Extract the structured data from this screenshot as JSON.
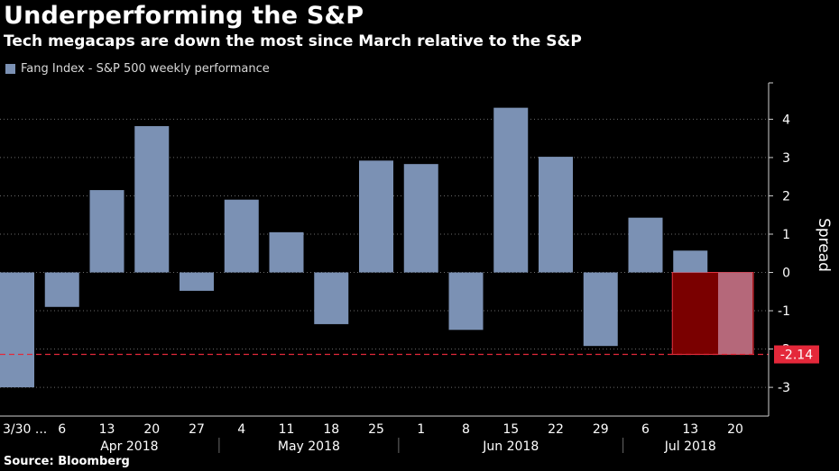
{
  "title": "Underperforming the S&P",
  "subtitle": "Tech megacaps are down the most since March relative to the S&P",
  "source": "Source: Bloomberg",
  "chart_data": {
    "type": "bar",
    "categories": [
      "3/30 ...",
      "6",
      "13",
      "20",
      "27",
      "4",
      "11",
      "18",
      "25",
      "1",
      "8",
      "15",
      "22",
      "29",
      "6",
      "13",
      "20"
    ],
    "month_labels": [
      {
        "label": "Apr 2018",
        "start": 1,
        "end": 4
      },
      {
        "label": "May 2018",
        "start": 5,
        "end": 8
      },
      {
        "label": "Jun 2018",
        "start": 9,
        "end": 13
      },
      {
        "label": "Jul 2018",
        "start": 14,
        "end": 16
      }
    ],
    "series": [
      {
        "name": "Fang Index - S&P 500 weekly performance",
        "values": [
          -3.0,
          -0.9,
          2.15,
          3.82,
          -0.48,
          1.9,
          1.05,
          -1.35,
          2.92,
          2.83,
          -1.5,
          4.3,
          3.02,
          -1.92,
          1.43,
          0.57,
          -2.14
        ]
      }
    ],
    "highlight_index": 16,
    "shaded_regions": [
      {
        "start": 15,
        "end": 16
      }
    ],
    "reference_line": {
      "value": -2.14,
      "label": "-2.14"
    },
    "ylabel": "Spread",
    "ylim": [
      -3.75,
      4.95
    ],
    "yticks": [
      -3,
      -2,
      -1,
      0,
      1,
      2,
      3,
      4
    ],
    "grid": true,
    "legend_position": "top-left",
    "colors": {
      "bar": "#7b91b4",
      "highlight_bar": "#b5687a",
      "shade": "#7a0000",
      "shade_border": "#e33340",
      "reference": "#e4283a",
      "grid": "#6a6a6a",
      "axis": "#cfcfcf"
    }
  }
}
